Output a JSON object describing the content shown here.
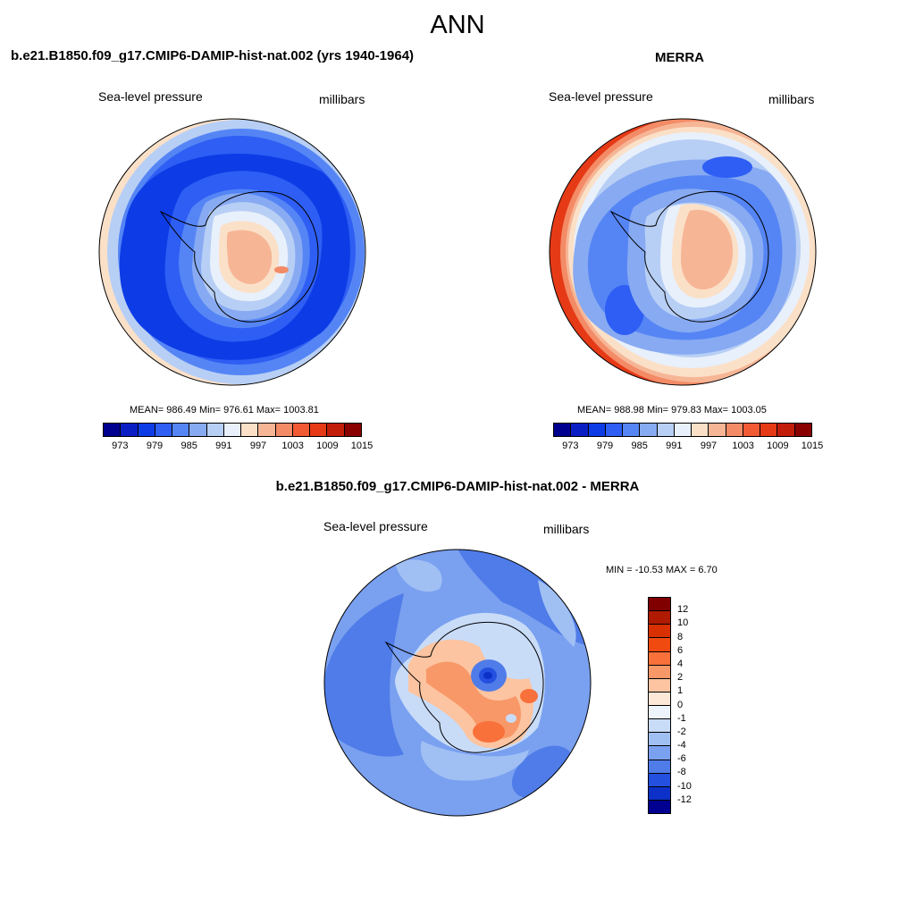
{
  "page": {
    "season": "ANN"
  },
  "chart_data": [
    {
      "type": "heatmap",
      "title": "b.e21.B1850.f09_g17.CMIP6-DAMIP-hist-nat.002 (yrs 1940-1964)",
      "left_label": "Sea-level pressure",
      "right_label": "millibars",
      "stats": "MEAN= 986.49  Min= 976.61  Max= 1003.81",
      "mean": 986.49,
      "min": 976.61,
      "max": 1003.81,
      "colorbar_ticks": [
        "973",
        "979",
        "985",
        "991",
        "997",
        "1003",
        "1009",
        "1015"
      ],
      "colorbar_colors": [
        "#00008f",
        "#0a1ec4",
        "#0d3ce6",
        "#2e5ef3",
        "#5585f5",
        "#87aaf2",
        "#b8cff5",
        "#e8f0fb",
        "#fbe0c8",
        "#f6b696",
        "#f38b66",
        "#f25a34",
        "#e63a17",
        "#c21c0a",
        "#880000"
      ]
    },
    {
      "type": "heatmap",
      "title": "MERRA",
      "left_label": "Sea-level pressure",
      "right_label": "millibars",
      "stats": "MEAN= 988.98  Min= 979.83  Max= 1003.05",
      "mean": 988.98,
      "min": 979.83,
      "max": 1003.05,
      "colorbar_ticks": [
        "973",
        "979",
        "985",
        "991",
        "997",
        "1003",
        "1009",
        "1015"
      ],
      "colorbar_colors": [
        "#00008f",
        "#0a1ec4",
        "#0d3ce6",
        "#2e5ef3",
        "#5585f5",
        "#87aaf2",
        "#b8cff5",
        "#e8f0fb",
        "#fbe0c8",
        "#f6b696",
        "#f38b66",
        "#f25a34",
        "#e63a17",
        "#c21c0a",
        "#880000"
      ]
    },
    {
      "type": "heatmap",
      "title": "b.e21.B1850.f09_g17.CMIP6-DAMIP-hist-nat.002 - MERRA",
      "left_label": "Sea-level pressure",
      "right_label": "millibars",
      "stats": "MIN = -10.53 MAX =   6.70",
      "min": -10.53,
      "max": 6.7,
      "colorbar_ticks": [
        "12",
        "10",
        "8",
        "6",
        "4",
        "2",
        "1",
        "0",
        "-1",
        "-2",
        "-4",
        "-6",
        "-8",
        "-10",
        "-12"
      ],
      "colorbar_colors": [
        "#800000",
        "#b01a00",
        "#d83000",
        "#f04a10",
        "#f8703a",
        "#f89868",
        "#fcc4a0",
        "#fde8d8",
        "#eef4fc",
        "#c8dcf8",
        "#a0c0f4",
        "#7aa0f0",
        "#4f7ce8",
        "#2450e0",
        "#0c30c8",
        "#000090"
      ]
    }
  ]
}
